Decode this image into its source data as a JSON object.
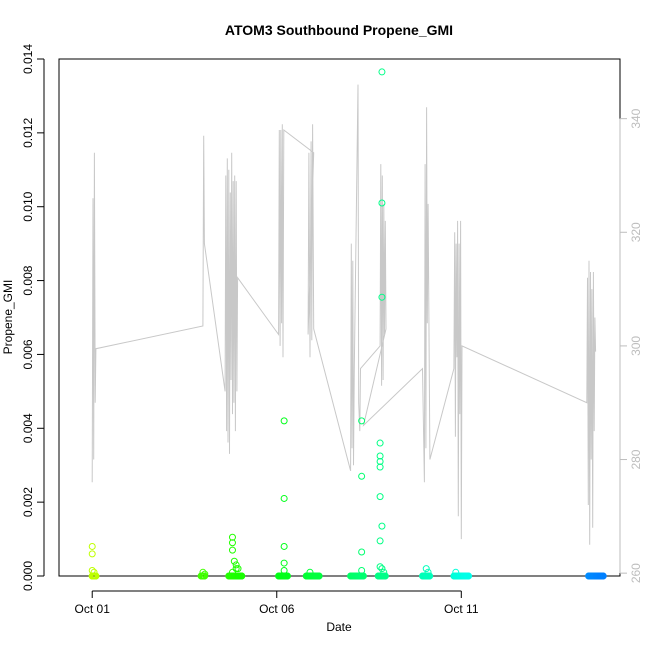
{
  "chart_data": {
    "type": "scatter",
    "title": "ATOM3 Southbound Propene_GMI",
    "xlabel": "Date",
    "ylabel": "Propene_GMI",
    "x_ticks": [
      "Oct 01",
      "Oct 06",
      "Oct 11"
    ],
    "x_tick_days": [
      1,
      6,
      11
    ],
    "xlim_days": [
      0.1,
      15.3
    ],
    "ylim": [
      0,
      0.014
    ],
    "y_ticks": [
      "0.000",
      "0.002",
      "0.004",
      "0.006",
      "0.008",
      "0.010",
      "0.012",
      "0.014"
    ],
    "y_tick_values": [
      0,
      0.002,
      0.004,
      0.006,
      0.008,
      0.01,
      0.012,
      0.014
    ],
    "right_axis": {
      "ticks": [
        "260",
        "280",
        "300",
        "320",
        "340"
      ],
      "tick_values": [
        260,
        280,
        300,
        320,
        340
      ],
      "lim": [
        259.5,
        350.5
      ],
      "color": "#bdbdbd"
    },
    "grid": false,
    "legend": "none",
    "series": [
      {
        "kind": "points",
        "color_scale": "rainbow by time (yellow-green → green → cyan → blue)",
        "points": [
          [
            1.0,
            0.0008
          ],
          [
            1.0,
            0.0006
          ],
          [
            1.0,
            0.00015
          ],
          [
            1.05,
            0.0001
          ],
          [
            1.0,
            0.0
          ],
          [
            1.05,
            0.0
          ],
          [
            1.1,
            0.0
          ],
          [
            4.0,
            0.0001
          ],
          [
            4.0,
            0.0
          ],
          [
            4.05,
            5e-05
          ],
          [
            4.8,
            0.00105
          ],
          [
            4.8,
            0.0009
          ],
          [
            4.8,
            0.0007
          ],
          [
            4.85,
            0.0004
          ],
          [
            4.9,
            0.0003
          ],
          [
            4.95,
            0.0002
          ],
          [
            4.8,
            0.0001
          ],
          [
            4.75,
            0.0
          ],
          [
            4.85,
            0.0
          ],
          [
            4.95,
            0.0
          ],
          [
            5.05,
            0.0
          ],
          [
            4.9,
            0.0002
          ],
          [
            6.1,
            0.0
          ],
          [
            6.2,
            0.0042
          ],
          [
            6.2,
            0.0021
          ],
          [
            6.2,
            0.0008
          ],
          [
            6.2,
            0.00035
          ],
          [
            6.2,
            0.00015
          ],
          [
            6.15,
            0.0
          ],
          [
            6.25,
            0.0
          ],
          [
            6.9,
            0.0001
          ],
          [
            6.85,
            0.0
          ],
          [
            7.0,
            0.0
          ],
          [
            7.1,
            0.0
          ],
          [
            8.1,
            0.0
          ],
          [
            8.2,
            0.0
          ],
          [
            8.25,
            0.0
          ],
          [
            8.3,
            0.0042
          ],
          [
            8.3,
            0.0027
          ],
          [
            8.3,
            0.00065
          ],
          [
            8.3,
            0.00015
          ],
          [
            8.85,
            0.01365
          ],
          [
            8.85,
            0.0101
          ],
          [
            8.85,
            0.00755
          ],
          [
            8.8,
            0.0036
          ],
          [
            8.8,
            0.00325
          ],
          [
            8.8,
            0.0031
          ],
          [
            8.8,
            0.00295
          ],
          [
            8.8,
            0.00215
          ],
          [
            8.85,
            0.00135
          ],
          [
            8.8,
            0.00095
          ],
          [
            8.8,
            0.00025
          ],
          [
            8.85,
            0.0002
          ],
          [
            8.9,
            0.0001
          ],
          [
            8.8,
            0.0
          ],
          [
            8.9,
            0.0
          ],
          [
            10.05,
            0.0002
          ],
          [
            10.1,
            0.0001
          ],
          [
            10.0,
            0.0
          ],
          [
            10.1,
            0.0
          ],
          [
            10.85,
            0.0001
          ],
          [
            10.85,
            0.0
          ],
          [
            10.95,
            0.0
          ],
          [
            11.05,
            0.0
          ],
          [
            11.15,
            0.0
          ],
          [
            14.5,
            0.0
          ],
          [
            14.6,
            0.0
          ],
          [
            14.7,
            0.0
          ],
          [
            14.8,
            0.0
          ]
        ]
      },
      {
        "kind": "line",
        "color": "#c8c8c8",
        "axis": "right",
        "points": [
          [
            1.0,
            276
          ],
          [
            1.02,
            326
          ],
          [
            1.04,
            280
          ],
          [
            1.06,
            334
          ],
          [
            1.08,
            290
          ],
          [
            1.1,
            299.5
          ],
          [
            4.0,
            303.5
          ],
          [
            4.02,
            337
          ],
          [
            4.04,
            318
          ],
          [
            4.6,
            292
          ],
          [
            4.62,
            330
          ],
          [
            4.64,
            285
          ],
          [
            4.66,
            333
          ],
          [
            4.68,
            283
          ],
          [
            4.7,
            331
          ],
          [
            4.72,
            281
          ],
          [
            4.74,
            327
          ],
          [
            4.76,
            294
          ],
          [
            4.78,
            334
          ],
          [
            4.8,
            288
          ],
          [
            4.82,
            329
          ],
          [
            4.84,
            290
          ],
          [
            4.86,
            330
          ],
          [
            4.88,
            285
          ],
          [
            4.9,
            329
          ],
          [
            4.92,
            292
          ],
          [
            4.94,
            312
          ],
          [
            6.05,
            302
          ],
          [
            6.07,
            338
          ],
          [
            6.09,
            300
          ],
          [
            6.11,
            338
          ],
          [
            6.13,
            304
          ],
          [
            6.15,
            339
          ],
          [
            6.17,
            298
          ],
          [
            6.19,
            338
          ],
          [
            7.0,
            334
          ],
          [
            6.85,
            302
          ],
          [
            6.87,
            334
          ],
          [
            6.9,
            298
          ],
          [
            6.93,
            336
          ],
          [
            6.95,
            301
          ],
          [
            6.97,
            339
          ],
          [
            7.0,
            303
          ],
          [
            8.0,
            278
          ],
          [
            8.02,
            318
          ],
          [
            8.04,
            282
          ],
          [
            8.06,
            315
          ],
          [
            8.08,
            279
          ],
          [
            8.1,
            296
          ],
          [
            8.2,
            346
          ],
          [
            8.22,
            290
          ],
          [
            8.25,
            285
          ],
          [
            8.27,
            296
          ],
          [
            8.8,
            300
          ],
          [
            8.82,
            332
          ],
          [
            8.84,
            293
          ],
          [
            8.86,
            330
          ],
          [
            8.88,
            294
          ],
          [
            8.9,
            325
          ],
          [
            8.92,
            302
          ],
          [
            8.94,
            322
          ],
          [
            8.96,
            303
          ],
          [
            8.35,
            286
          ],
          [
            9.95,
            296
          ],
          [
            10.0,
            276
          ],
          [
            10.02,
            332
          ],
          [
            10.04,
            282
          ],
          [
            10.06,
            342
          ],
          [
            10.08,
            304
          ],
          [
            10.1,
            325
          ],
          [
            10.15,
            280
          ],
          [
            10.8,
            296
          ],
          [
            10.82,
            320
          ],
          [
            10.84,
            284
          ],
          [
            10.86,
            318
          ],
          [
            10.88,
            298
          ],
          [
            10.9,
            322
          ],
          [
            10.92,
            270
          ],
          [
            10.94,
            318
          ],
          [
            10.96,
            288
          ],
          [
            10.98,
            322
          ],
          [
            11.0,
            266
          ],
          [
            11.02,
            300
          ],
          [
            14.4,
            290
          ],
          [
            14.42,
            312
          ],
          [
            14.44,
            272
          ],
          [
            14.46,
            315
          ],
          [
            14.48,
            265
          ],
          [
            14.5,
            313
          ],
          [
            14.52,
            280
          ],
          [
            14.54,
            310
          ],
          [
            14.56,
            268
          ],
          [
            14.58,
            313
          ],
          [
            14.6,
            285
          ],
          [
            14.62,
            305
          ],
          [
            14.64,
            299
          ]
        ]
      }
    ]
  }
}
